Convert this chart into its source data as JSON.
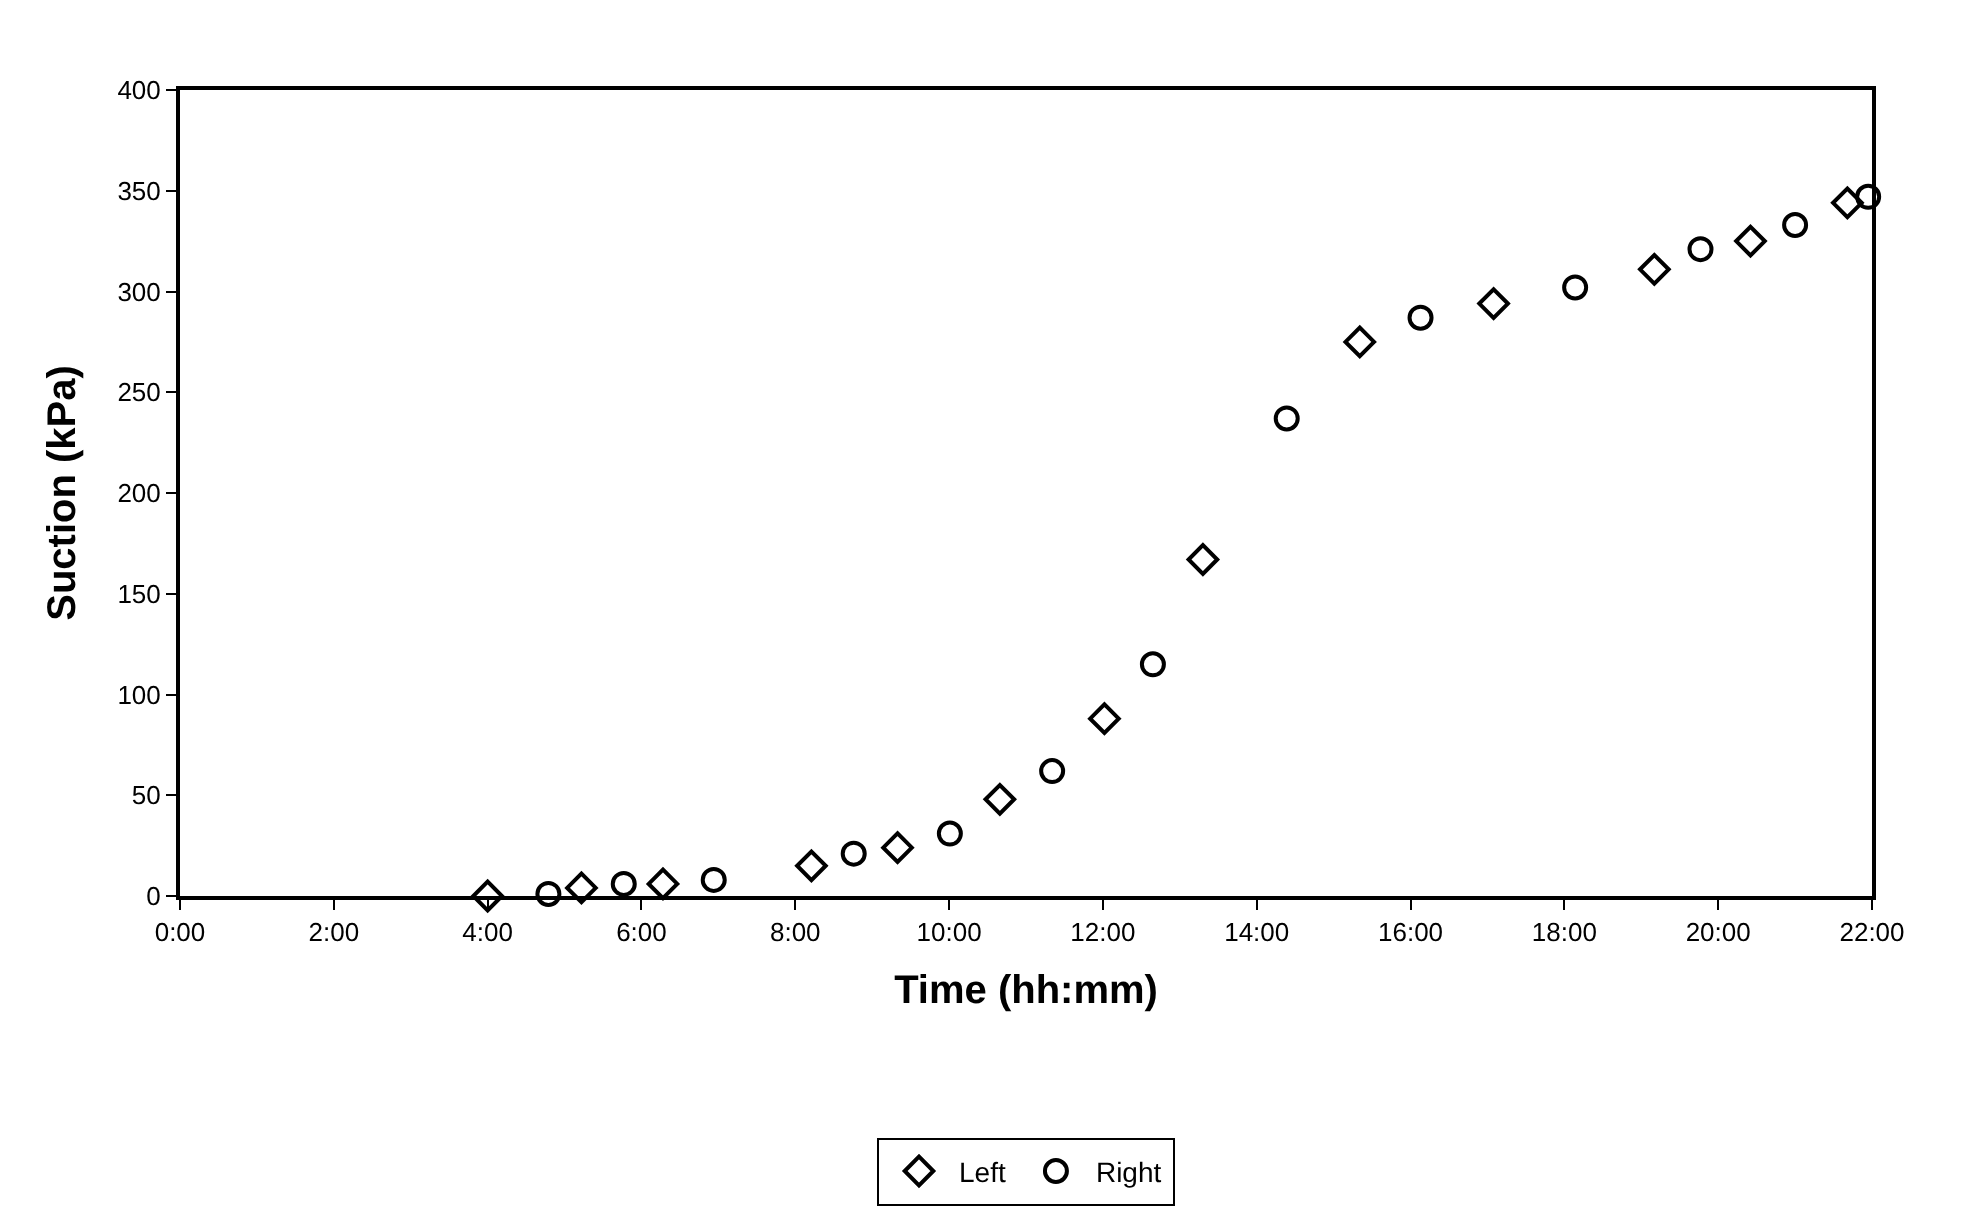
{
  "chart_data": {
    "type": "scatter",
    "xlabel": "Time (hh:mm)",
    "ylabel": "Suction (kPa)",
    "xlim": [
      0,
      22
    ],
    "ylim": [
      0,
      400
    ],
    "xticks": [
      {
        "value": 0,
        "label": "0:00"
      },
      {
        "value": 2,
        "label": "2:00"
      },
      {
        "value": 4,
        "label": "4:00"
      },
      {
        "value": 6,
        "label": "6:00"
      },
      {
        "value": 8,
        "label": "8:00"
      },
      {
        "value": 10,
        "label": "10:00"
      },
      {
        "value": 12,
        "label": "12:00"
      },
      {
        "value": 14,
        "label": "14:00"
      },
      {
        "value": 16,
        "label": "16:00"
      },
      {
        "value": 18,
        "label": "18:00"
      },
      {
        "value": 20,
        "label": "20:00"
      },
      {
        "value": 22,
        "label": "22:00"
      }
    ],
    "yticks": [
      0,
      50,
      100,
      150,
      200,
      250,
      300,
      350,
      400
    ],
    "legend": "bottom",
    "series": [
      {
        "name": "Left",
        "color": "#000000",
        "marker": "diamond",
        "x": [
          4.0,
          5.22,
          6.28,
          8.21,
          9.33,
          10.66,
          12.02,
          13.3,
          15.34,
          17.08,
          19.17,
          20.42,
          21.68
        ],
        "values": [
          0,
          4,
          6,
          15,
          24,
          48,
          88,
          167,
          275,
          294,
          311,
          325,
          344
        ]
      },
      {
        "name": "Right",
        "color": "#000000",
        "marker": "circle",
        "x": [
          4.79,
          5.77,
          6.94,
          8.76,
          10.01,
          11.34,
          12.65,
          14.39,
          16.13,
          18.14,
          19.77,
          21.0,
          21.95
        ],
        "values": [
          1,
          6,
          8,
          21,
          31,
          62,
          115,
          237,
          287,
          302,
          321,
          333,
          347
        ]
      }
    ]
  }
}
